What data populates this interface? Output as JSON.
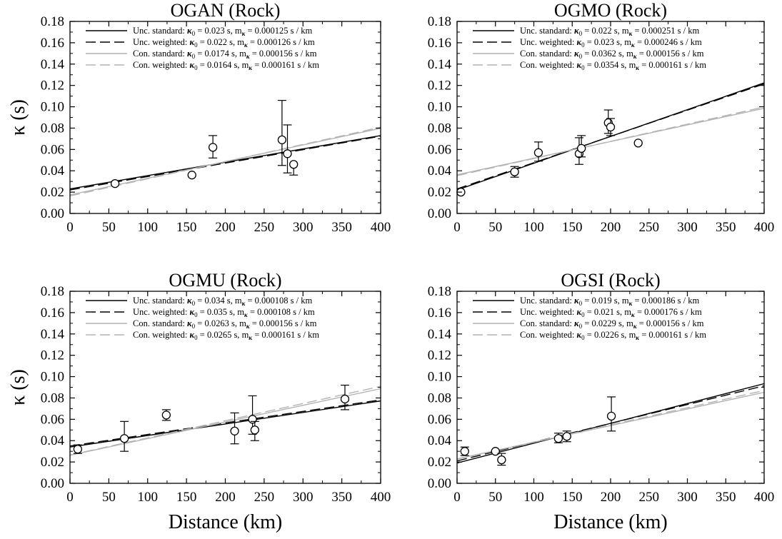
{
  "chart_data": [
    {
      "type": "scatter",
      "title": "OGAN (Rock)",
      "xlabel": "",
      "ylabel": "κ (s)",
      "xlim": [
        0,
        400
      ],
      "ylim": [
        0,
        0.18
      ],
      "xticks": [
        "0",
        "50",
        "100",
        "150",
        "200",
        "250",
        "300",
        "350",
        "400"
      ],
      "yticks": [
        "0.00",
        "0.02",
        "0.04",
        "0.06",
        "0.08",
        "0.10",
        "0.12",
        "0.14",
        "0.16",
        "0.18"
      ],
      "points": [
        {
          "x": 58,
          "y": 0.028,
          "err_up": 0.0,
          "err_dn": 0.0
        },
        {
          "x": 157,
          "y": 0.036,
          "err_up": 0.0,
          "err_dn": 0.0
        },
        {
          "x": 184,
          "y": 0.062,
          "err_up": 0.011,
          "err_dn": 0.01
        },
        {
          "x": 273,
          "y": 0.069,
          "err_up": 0.037,
          "err_dn": 0.024
        },
        {
          "x": 280,
          "y": 0.056,
          "err_up": 0.027,
          "err_dn": 0.018
        },
        {
          "x": 288,
          "y": 0.046,
          "err_up": 0.0,
          "err_dn": 0.01
        }
      ],
      "series": [
        {
          "legend_prefix": "Unc. standard: ",
          "k0": "0.023",
          "m": "0.000125",
          "style": "unc-std",
          "kappa0": 0.023,
          "slope": 0.000125
        },
        {
          "legend_prefix": "Unc. weighted: ",
          "k0": "0.022",
          "m": "0.000126",
          "style": "unc-wtd",
          "kappa0": 0.022,
          "slope": 0.000126
        },
        {
          "legend_prefix": "Con. standard: ",
          "k0": "0.0174",
          "m": "0.000156",
          "style": "con-std",
          "kappa0": 0.0174,
          "slope": 0.000156
        },
        {
          "legend_prefix": "Con. weighted: ",
          "k0": "0.0164",
          "m": "0.000161",
          "style": "con-wtd",
          "kappa0": 0.0164,
          "slope": 0.000161
        }
      ]
    },
    {
      "type": "scatter",
      "title": "OGMO (Rock)",
      "xlabel": "",
      "ylabel": "",
      "xlim": [
        0,
        400
      ],
      "ylim": [
        0,
        0.18
      ],
      "xticks": [
        "0",
        "50",
        "100",
        "150",
        "200",
        "250",
        "300",
        "350",
        "400"
      ],
      "yticks": [
        "0.00",
        "0.02",
        "0.04",
        "0.06",
        "0.08",
        "0.10",
        "0.12",
        "0.14",
        "0.16",
        "0.18"
      ],
      "points": [
        {
          "x": 5,
          "y": 0.02,
          "err_up": 0.0,
          "err_dn": 0.0
        },
        {
          "x": 75,
          "y": 0.039,
          "err_up": 0.005,
          "err_dn": 0.005
        },
        {
          "x": 106,
          "y": 0.057,
          "err_up": 0.01,
          "err_dn": 0.008
        },
        {
          "x": 159,
          "y": 0.056,
          "err_up": 0.015,
          "err_dn": 0.01
        },
        {
          "x": 162,
          "y": 0.061,
          "err_up": 0.012,
          "err_dn": 0.008
        },
        {
          "x": 197,
          "y": 0.085,
          "err_up": 0.012,
          "err_dn": 0.01
        },
        {
          "x": 200,
          "y": 0.081,
          "err_up": 0.008,
          "err_dn": 0.008
        },
        {
          "x": 236,
          "y": 0.066,
          "err_up": 0.0,
          "err_dn": 0.0
        }
      ],
      "series": [
        {
          "legend_prefix": "Unc. standard: ",
          "k0": "0.022",
          "m": "0.000251",
          "style": "unc-std",
          "kappa0": 0.022,
          "slope": 0.000251
        },
        {
          "legend_prefix": "Unc. weighted: ",
          "k0": "0.023",
          "m": "0.000246",
          "style": "unc-wtd",
          "kappa0": 0.023,
          "slope": 0.000246
        },
        {
          "legend_prefix": "Con. standard: ",
          "k0": "0.0362",
          "m": "0.000156",
          "style": "con-std",
          "kappa0": 0.0362,
          "slope": 0.000156
        },
        {
          "legend_prefix": "Con. weighted: ",
          "k0": "0.0354",
          "m": "0.000161",
          "style": "con-wtd",
          "kappa0": 0.0354,
          "slope": 0.000161
        }
      ]
    },
    {
      "type": "scatter",
      "title": "OGMU (Rock)",
      "xlabel": "Distance (km)",
      "ylabel": "κ (s)",
      "xlim": [
        0,
        400
      ],
      "ylim": [
        0,
        0.18
      ],
      "xticks": [
        "0",
        "50",
        "100",
        "150",
        "200",
        "250",
        "300",
        "350",
        "400"
      ],
      "yticks": [
        "0.00",
        "0.02",
        "0.04",
        "0.06",
        "0.08",
        "0.10",
        "0.12",
        "0.14",
        "0.16",
        "0.18"
      ],
      "points": [
        {
          "x": 10,
          "y": 0.032,
          "err_up": 0.004,
          "err_dn": 0.004
        },
        {
          "x": 70,
          "y": 0.042,
          "err_up": 0.016,
          "err_dn": 0.012
        },
        {
          "x": 124,
          "y": 0.064,
          "err_up": 0.005,
          "err_dn": 0.005
        },
        {
          "x": 212,
          "y": 0.049,
          "err_up": 0.017,
          "err_dn": 0.012
        },
        {
          "x": 235,
          "y": 0.06,
          "err_up": 0.022,
          "err_dn": 0.014
        },
        {
          "x": 238,
          "y": 0.05,
          "err_up": 0.008,
          "err_dn": 0.01
        },
        {
          "x": 354,
          "y": 0.079,
          "err_up": 0.013,
          "err_dn": 0.01
        }
      ],
      "series": [
        {
          "legend_prefix": "Unc. standard: ",
          "k0": "0.034",
          "m": "0.000108",
          "style": "unc-std",
          "kappa0": 0.034,
          "slope": 0.000108
        },
        {
          "legend_prefix": "Unc. weighted: ",
          "k0": "0.035",
          "m": "0.000108",
          "style": "unc-wtd",
          "kappa0": 0.035,
          "slope": 0.000108
        },
        {
          "legend_prefix": "Con. standard: ",
          "k0": "0.0263",
          "m": "0.000156",
          "style": "con-std",
          "kappa0": 0.0263,
          "slope": 0.000156
        },
        {
          "legend_prefix": "Con. weighted: ",
          "k0": "0.0265",
          "m": "0.000161",
          "style": "con-wtd",
          "kappa0": 0.0265,
          "slope": 0.000161
        }
      ]
    },
    {
      "type": "scatter",
      "title": "OGSI (Rock)",
      "xlabel": "Distance (km)",
      "ylabel": "",
      "xlim": [
        0,
        400
      ],
      "ylim": [
        0,
        0.18
      ],
      "xticks": [
        "0",
        "50",
        "100",
        "150",
        "200",
        "250",
        "300",
        "350",
        "400"
      ],
      "yticks": [
        "0.00",
        "0.02",
        "0.04",
        "0.06",
        "0.08",
        "0.10",
        "0.12",
        "0.14",
        "0.16",
        "0.18"
      ],
      "points": [
        {
          "x": 10,
          "y": 0.03,
          "err_up": 0.004,
          "err_dn": 0.004
        },
        {
          "x": 50,
          "y": 0.03,
          "err_up": 0.0,
          "err_dn": 0.0
        },
        {
          "x": 58,
          "y": 0.022,
          "err_up": 0.006,
          "err_dn": 0.005
        },
        {
          "x": 132,
          "y": 0.042,
          "err_up": 0.005,
          "err_dn": 0.004
        },
        {
          "x": 143,
          "y": 0.044,
          "err_up": 0.005,
          "err_dn": 0.005
        },
        {
          "x": 201,
          "y": 0.063,
          "err_up": 0.018,
          "err_dn": 0.014
        }
      ],
      "series": [
        {
          "legend_prefix": "Unc. standard: ",
          "k0": "0.019",
          "m": "0.000186",
          "style": "unc-std",
          "kappa0": 0.019,
          "slope": 0.000186
        },
        {
          "legend_prefix": "Unc. weighted: ",
          "k0": "0.021",
          "m": "0.000176",
          "style": "unc-wtd",
          "kappa0": 0.021,
          "slope": 0.000176
        },
        {
          "legend_prefix": "Con. standard: ",
          "k0": "0.0229",
          "m": "0.000156",
          "style": "con-std",
          "kappa0": 0.0229,
          "slope": 0.000156
        },
        {
          "legend_prefix": "Con. weighted: ",
          "k0": "0.0226",
          "m": "0.000161",
          "style": "con-wtd",
          "kappa0": 0.0226,
          "slope": 0.000161
        }
      ]
    }
  ],
  "legend_text": {
    "kappa_symbol": "κ",
    "kappa_sub": "0",
    "k0_suffix": " s,  ",
    "m_symbol": "m",
    "m_sub": "κ",
    "eq": " = ",
    "m_unit": " s / km"
  },
  "colors": {
    "unc": "#000000",
    "con": "#b4b4b4",
    "marker_fill": "#ffffff",
    "axis": "#000000"
  }
}
